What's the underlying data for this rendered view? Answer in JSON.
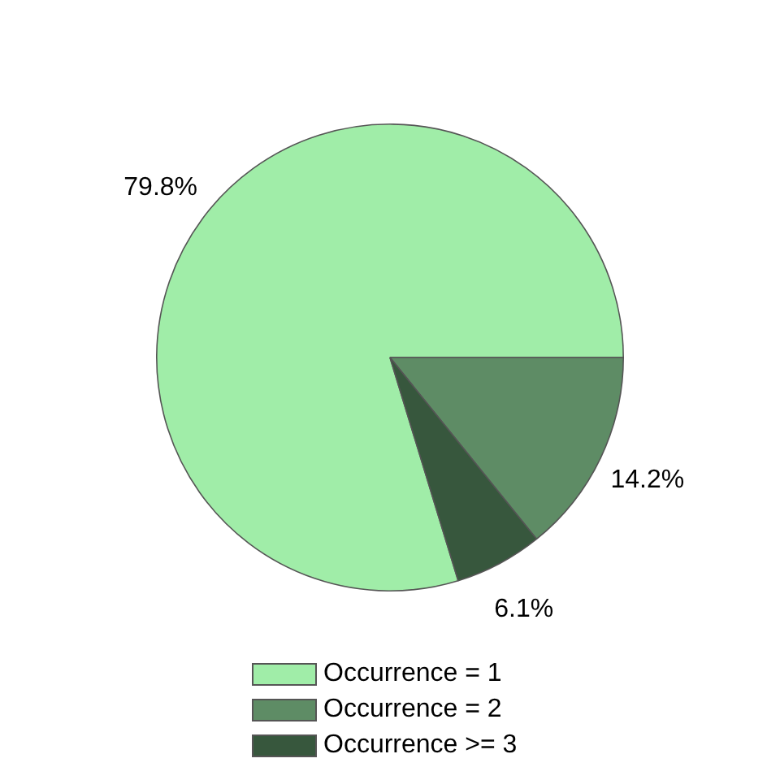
{
  "chart_data": {
    "type": "pie",
    "categories": [
      "Occurrence = 1",
      "Occurrence = 2",
      "Occurrence >= 3"
    ],
    "values": [
      79.8,
      14.2,
      6.1
    ],
    "colors": [
      "#a0eda8",
      "#5e8c65",
      "#37573d"
    ],
    "value_labels": [
      "79.8%",
      "14.2%",
      "6.1%"
    ],
    "legend": "bottom"
  }
}
